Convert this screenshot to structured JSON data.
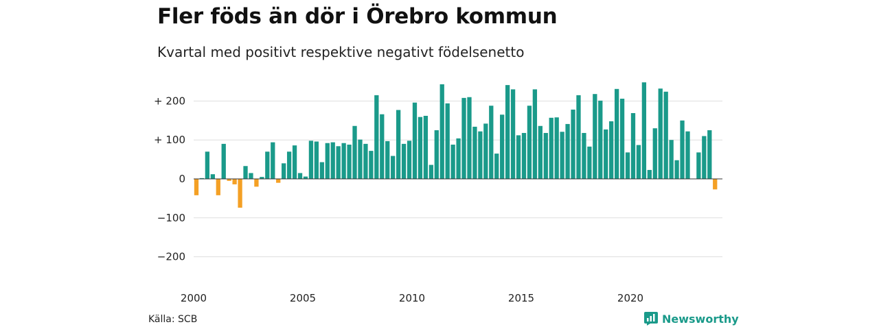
{
  "header": {
    "title": "Fler föds än dör i Örebro kommun",
    "subtitle": "Kvartal med positivt respektive negativt födelsenetto"
  },
  "footer": {
    "source": "Källa: SCB",
    "brand": "Newsworthy"
  },
  "colors": {
    "positive": "#1a9a8a",
    "negative": "#f4a025",
    "grid": "#dddddd",
    "zero_line": "#333333",
    "text": "#222222"
  },
  "icons": {
    "brand": "newsworthy-logo-icon"
  },
  "chart_data": {
    "type": "bar",
    "title": "Fler föds än dör i Örebro kommun",
    "subtitle": "Kvartal med positivt respektive negativt födelsenetto",
    "xlabel": "",
    "ylabel": "",
    "x_start": "2000 Q1",
    "period": "quarter",
    "ylim": [
      -250,
      250
    ],
    "y_ticks": [
      {
        "value": 200,
        "label": "+ 200"
      },
      {
        "value": 100,
        "label": "+ 100"
      },
      {
        "value": 0,
        "label": "0"
      },
      {
        "value": -100,
        "label": "−100"
      },
      {
        "value": -200,
        "label": "−200"
      }
    ],
    "x_ticks": [
      "2000",
      "2005",
      "2010",
      "2015",
      "2020"
    ],
    "grid": true,
    "legend": "none",
    "values": [
      -42,
      2,
      70,
      12,
      -42,
      90,
      -5,
      -14,
      -74,
      33,
      15,
      -20,
      5,
      70,
      94,
      -10,
      40,
      70,
      86,
      15,
      6,
      98,
      96,
      43,
      92,
      94,
      84,
      92,
      88,
      136,
      101,
      90,
      72,
      215,
      166,
      97,
      59,
      177,
      90,
      98,
      196,
      159,
      162,
      36,
      125,
      243,
      194,
      88,
      104,
      208,
      210,
      134,
      122,
      142,
      188,
      65,
      165,
      241,
      230,
      112,
      118,
      188,
      230,
      136,
      118,
      157,
      158,
      121,
      141,
      178,
      215,
      118,
      83,
      218,
      201,
      127,
      148,
      231,
      206,
      68,
      169,
      87,
      248,
      23,
      130,
      232,
      224,
      100,
      48,
      150,
      122,
      0,
      68,
      110,
      125,
      -27
    ]
  }
}
